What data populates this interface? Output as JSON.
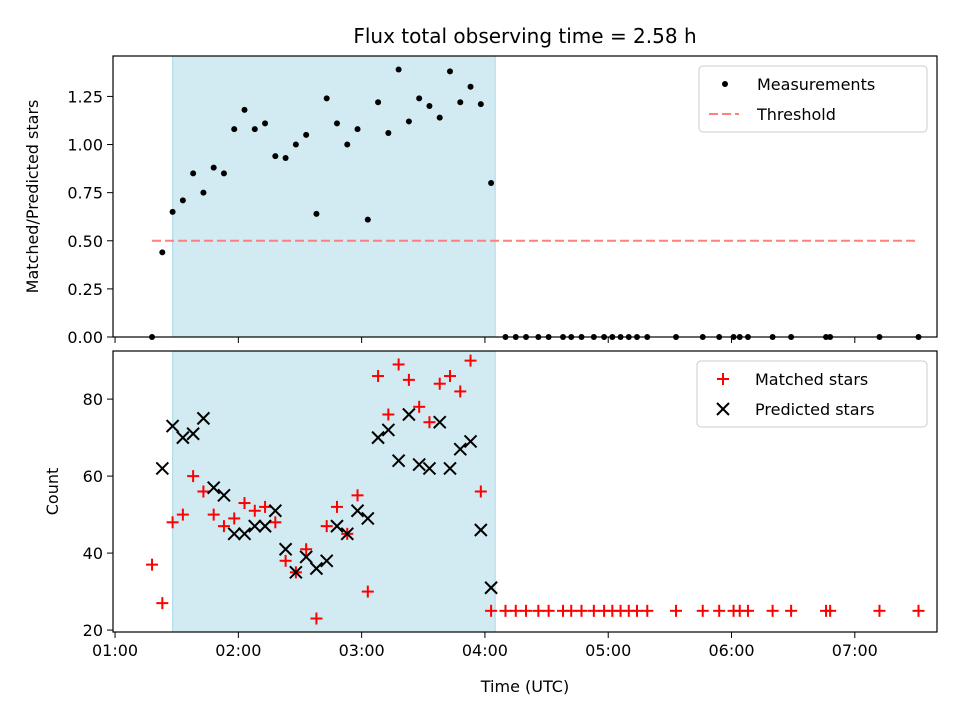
{
  "chart_data": [
    {
      "type": "scatter",
      "panel": "top",
      "title": "Flux total observing time = 2.58 h",
      "xlabel": "",
      "ylabel": "Matched/Predicted stars",
      "ylim": [
        0,
        1.46
      ],
      "yticks": [
        "0.00",
        "0.25",
        "0.50",
        "0.75",
        "1.00",
        "1.25"
      ],
      "legend_position": "upper right",
      "shaded_interval": {
        "from": "01:28",
        "to": "04:05",
        "color": "#add8e6"
      },
      "series": [
        {
          "name": "Measurements",
          "marker": "dot",
          "color": "#000000",
          "points": [
            [
              "01:18",
              0.0
            ],
            [
              "01:23",
              0.44
            ],
            [
              "01:28",
              0.65
            ],
            [
              "01:33",
              0.71
            ],
            [
              "01:38",
              0.85
            ],
            [
              "01:43",
              0.75
            ],
            [
              "01:48",
              0.88
            ],
            [
              "01:53",
              0.85
            ],
            [
              "01:58",
              1.08
            ],
            [
              "02:03",
              1.18
            ],
            [
              "02:08",
              1.08
            ],
            [
              "02:13",
              1.11
            ],
            [
              "02:18",
              0.94
            ],
            [
              "02:23",
              0.93
            ],
            [
              "02:28",
              1.0
            ],
            [
              "02:33",
              1.05
            ],
            [
              "02:38",
              0.64
            ],
            [
              "02:43",
              1.24
            ],
            [
              "02:48",
              1.11
            ],
            [
              "02:53",
              1.0
            ],
            [
              "02:58",
              1.08
            ],
            [
              "03:03",
              0.61
            ],
            [
              "03:08",
              1.22
            ],
            [
              "03:13",
              1.06
            ],
            [
              "03:18",
              1.39
            ],
            [
              "03:23",
              1.12
            ],
            [
              "03:28",
              1.24
            ],
            [
              "03:33",
              1.2
            ],
            [
              "03:38",
              1.14
            ],
            [
              "03:43",
              1.38
            ],
            [
              "03:48",
              1.22
            ],
            [
              "03:53",
              1.3
            ],
            [
              "03:58",
              1.21
            ],
            [
              "04:03",
              0.8
            ],
            [
              "04:10",
              0.0
            ],
            [
              "04:15",
              0.0
            ],
            [
              "04:20",
              0.0
            ],
            [
              "04:26",
              0.0
            ],
            [
              "04:31",
              0.0
            ],
            [
              "04:38",
              0.0
            ],
            [
              "04:42",
              0.0
            ],
            [
              "04:47",
              0.0
            ],
            [
              "04:53",
              0.0
            ],
            [
              "04:58",
              0.0
            ],
            [
              "05:02",
              0.0
            ],
            [
              "05:06",
              0.0
            ],
            [
              "05:10",
              0.0
            ],
            [
              "05:14",
              0.0
            ],
            [
              "05:19",
              0.0
            ],
            [
              "05:33",
              0.0
            ],
            [
              "05:46",
              0.0
            ],
            [
              "05:54",
              0.0
            ],
            [
              "06:01",
              0.0
            ],
            [
              "06:04",
              0.0
            ],
            [
              "06:08",
              0.0
            ],
            [
              "06:20",
              0.0
            ],
            [
              "06:29",
              0.0
            ],
            [
              "06:46",
              0.0
            ],
            [
              "06:48",
              0.0
            ],
            [
              "07:12",
              0.0
            ],
            [
              "07:31",
              0.0
            ]
          ]
        },
        {
          "name": "Threshold",
          "style": "dashed",
          "color": "#ff7f7f",
          "points": [
            [
              "01:18",
              0.5
            ],
            [
              "07:31",
              0.5
            ]
          ]
        }
      ]
    },
    {
      "type": "scatter",
      "panel": "bottom",
      "title": "",
      "xlabel": "Time (UTC)",
      "ylabel": "Count",
      "ylim": [
        19.5,
        92.5
      ],
      "yticks": [
        "20",
        "40",
        "60",
        "80"
      ],
      "xlim": [
        "00:59",
        "07:40"
      ],
      "xticks": [
        "01:00",
        "02:00",
        "03:00",
        "04:00",
        "05:00",
        "06:00",
        "07:00"
      ],
      "legend_position": "upper right",
      "shaded_interval": {
        "from": "01:28",
        "to": "04:05",
        "color": "#add8e6"
      },
      "series": [
        {
          "name": "Matched stars",
          "marker": "plus",
          "color": "#ff0000",
          "points": [
            [
              "01:18",
              37
            ],
            [
              "01:23",
              27
            ],
            [
              "01:28",
              48
            ],
            [
              "01:33",
              50
            ],
            [
              "01:38",
              60
            ],
            [
              "01:43",
              56
            ],
            [
              "01:48",
              50
            ],
            [
              "01:53",
              47
            ],
            [
              "01:58",
              49
            ],
            [
              "02:03",
              53
            ],
            [
              "02:08",
              51
            ],
            [
              "02:13",
              52
            ],
            [
              "02:18",
              48
            ],
            [
              "02:23",
              38
            ],
            [
              "02:28",
              35
            ],
            [
              "02:33",
              41
            ],
            [
              "02:38",
              23
            ],
            [
              "02:43",
              47
            ],
            [
              "02:48",
              52
            ],
            [
              "02:53",
              45
            ],
            [
              "02:58",
              55
            ],
            [
              "03:03",
              30
            ],
            [
              "03:08",
              86
            ],
            [
              "03:13",
              76
            ],
            [
              "03:18",
              89
            ],
            [
              "03:23",
              85
            ],
            [
              "03:28",
              78
            ],
            [
              "03:33",
              74
            ],
            [
              "03:38",
              84
            ],
            [
              "03:43",
              86
            ],
            [
              "03:48",
              82
            ],
            [
              "03:53",
              90
            ],
            [
              "03:58",
              56
            ],
            [
              "04:03",
              25
            ],
            [
              "04:10",
              25
            ],
            [
              "04:15",
              25
            ],
            [
              "04:20",
              25
            ],
            [
              "04:26",
              25
            ],
            [
              "04:31",
              25
            ],
            [
              "04:38",
              25
            ],
            [
              "04:42",
              25
            ],
            [
              "04:47",
              25
            ],
            [
              "04:53",
              25
            ],
            [
              "04:58",
              25
            ],
            [
              "05:02",
              25
            ],
            [
              "05:06",
              25
            ],
            [
              "05:10",
              25
            ],
            [
              "05:14",
              25
            ],
            [
              "05:19",
              25
            ],
            [
              "05:33",
              25
            ],
            [
              "05:46",
              25
            ],
            [
              "05:54",
              25
            ],
            [
              "06:01",
              25
            ],
            [
              "06:04",
              25
            ],
            [
              "06:08",
              25
            ],
            [
              "06:20",
              25
            ],
            [
              "06:29",
              25
            ],
            [
              "06:46",
              25
            ],
            [
              "06:48",
              25
            ],
            [
              "07:12",
              25
            ],
            [
              "07:31",
              25
            ]
          ]
        },
        {
          "name": "Predicted stars",
          "marker": "x",
          "color": "#000000",
          "points": [
            [
              "01:23",
              62
            ],
            [
              "01:28",
              73
            ],
            [
              "01:33",
              70
            ],
            [
              "01:38",
              71
            ],
            [
              "01:43",
              75
            ],
            [
              "01:48",
              57
            ],
            [
              "01:53",
              55
            ],
            [
              "01:58",
              45
            ],
            [
              "02:03",
              45
            ],
            [
              "02:08",
              47
            ],
            [
              "02:13",
              47
            ],
            [
              "02:18",
              51
            ],
            [
              "02:23",
              41
            ],
            [
              "02:28",
              35
            ],
            [
              "02:33",
              39
            ],
            [
              "02:38",
              36
            ],
            [
              "02:43",
              38
            ],
            [
              "02:48",
              47
            ],
            [
              "02:53",
              45
            ],
            [
              "02:58",
              51
            ],
            [
              "03:03",
              49
            ],
            [
              "03:08",
              70
            ],
            [
              "03:13",
              72
            ],
            [
              "03:18",
              64
            ],
            [
              "03:23",
              76
            ],
            [
              "03:28",
              63
            ],
            [
              "03:33",
              62
            ],
            [
              "03:38",
              74
            ],
            [
              "03:43",
              62
            ],
            [
              "03:48",
              67
            ],
            [
              "03:53",
              69
            ],
            [
              "03:58",
              46
            ],
            [
              "04:03",
              31
            ]
          ]
        }
      ]
    }
  ]
}
